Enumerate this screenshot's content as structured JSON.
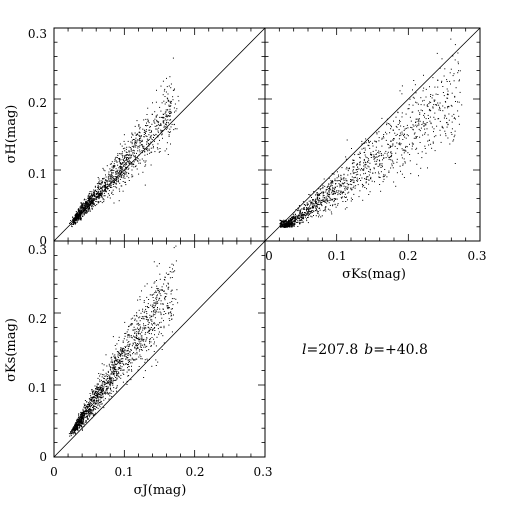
{
  "chart_data": [
    {
      "type": "scatter",
      "panel": "top-left",
      "xlabel": "",
      "ylabel": "σH(mag)",
      "xlim": [
        0,
        0.3
      ],
      "ylim": [
        0,
        0.3
      ],
      "x_ticks": [],
      "y_ticks": [
        "0",
        "0.1",
        "0.2",
        "0.3"
      ],
      "reference_line": "y = x",
      "description": "σH versus σJ",
      "cloud": {
        "x_range": [
          0.03,
          0.17
        ],
        "slope_mid": 1.1,
        "spread": 0.3,
        "n": 1400
      }
    },
    {
      "type": "scatter",
      "panel": "top-right",
      "xlabel": "σKs(mag)",
      "ylabel": "",
      "xlim": [
        0,
        0.3
      ],
      "ylim": [
        0,
        0.3
      ],
      "x_ticks": [
        "0",
        "0.1",
        "0.2",
        "0.3"
      ],
      "y_ticks": [],
      "reference_line": "y = x",
      "description": "σH versus σKs",
      "cloud": {
        "x_range": [
          0.025,
          0.27
        ],
        "slope_mid": 0.75,
        "spread": 0.28,
        "n": 1500
      }
    },
    {
      "type": "scatter",
      "panel": "bottom-left",
      "xlabel": "σJ(mag)",
      "ylabel": "σKs(mag)",
      "xlim": [
        0,
        0.3
      ],
      "ylim": [
        0,
        0.3
      ],
      "x_ticks": [
        "0",
        "0.1",
        "0.2",
        "0.3"
      ],
      "y_ticks": [
        "0",
        "0.1",
        "0.2",
        "0.3"
      ],
      "reference_line": "y = x",
      "description": "σKs versus σJ",
      "cloud": {
        "x_range": [
          0.03,
          0.17
        ],
        "slope_mid": 1.4,
        "spread": 0.38,
        "n": 1500
      }
    }
  ],
  "annotation": {
    "l_symbol": "l",
    "l_value": "=207.8",
    "b_symbol": "b",
    "b_value": "=+40.8"
  }
}
